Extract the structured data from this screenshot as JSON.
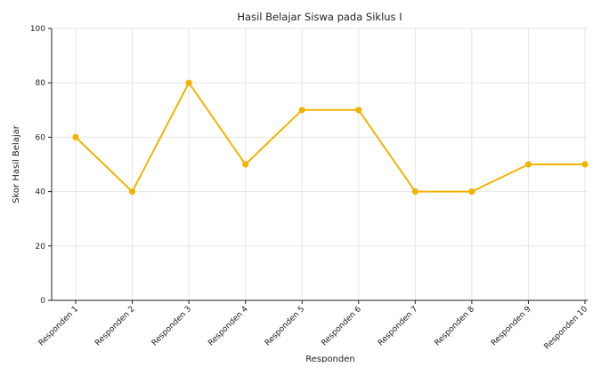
{
  "chart_data": {
    "type": "line",
    "title": "Hasil Belajar Siswa pada Siklus I",
    "xlabel": "Responden",
    "ylabel": "Skor Hasil Belajar",
    "categories": [
      "Responden 1",
      "Responden 2",
      "Responden 3",
      "Responden 4",
      "Responden 5",
      "Responden 6",
      "Responden 7",
      "Responden 8",
      "Responden 9",
      "Responden 10"
    ],
    "series": [
      {
        "values": [
          60,
          40,
          80,
          50,
          70,
          70,
          40,
          40,
          50,
          50
        ],
        "color": "#f0b400"
      }
    ],
    "ylim": [
      0,
      100
    ],
    "yticks": [
      0,
      20,
      40,
      60,
      80,
      100
    ],
    "grid": true,
    "legend": "none"
  }
}
